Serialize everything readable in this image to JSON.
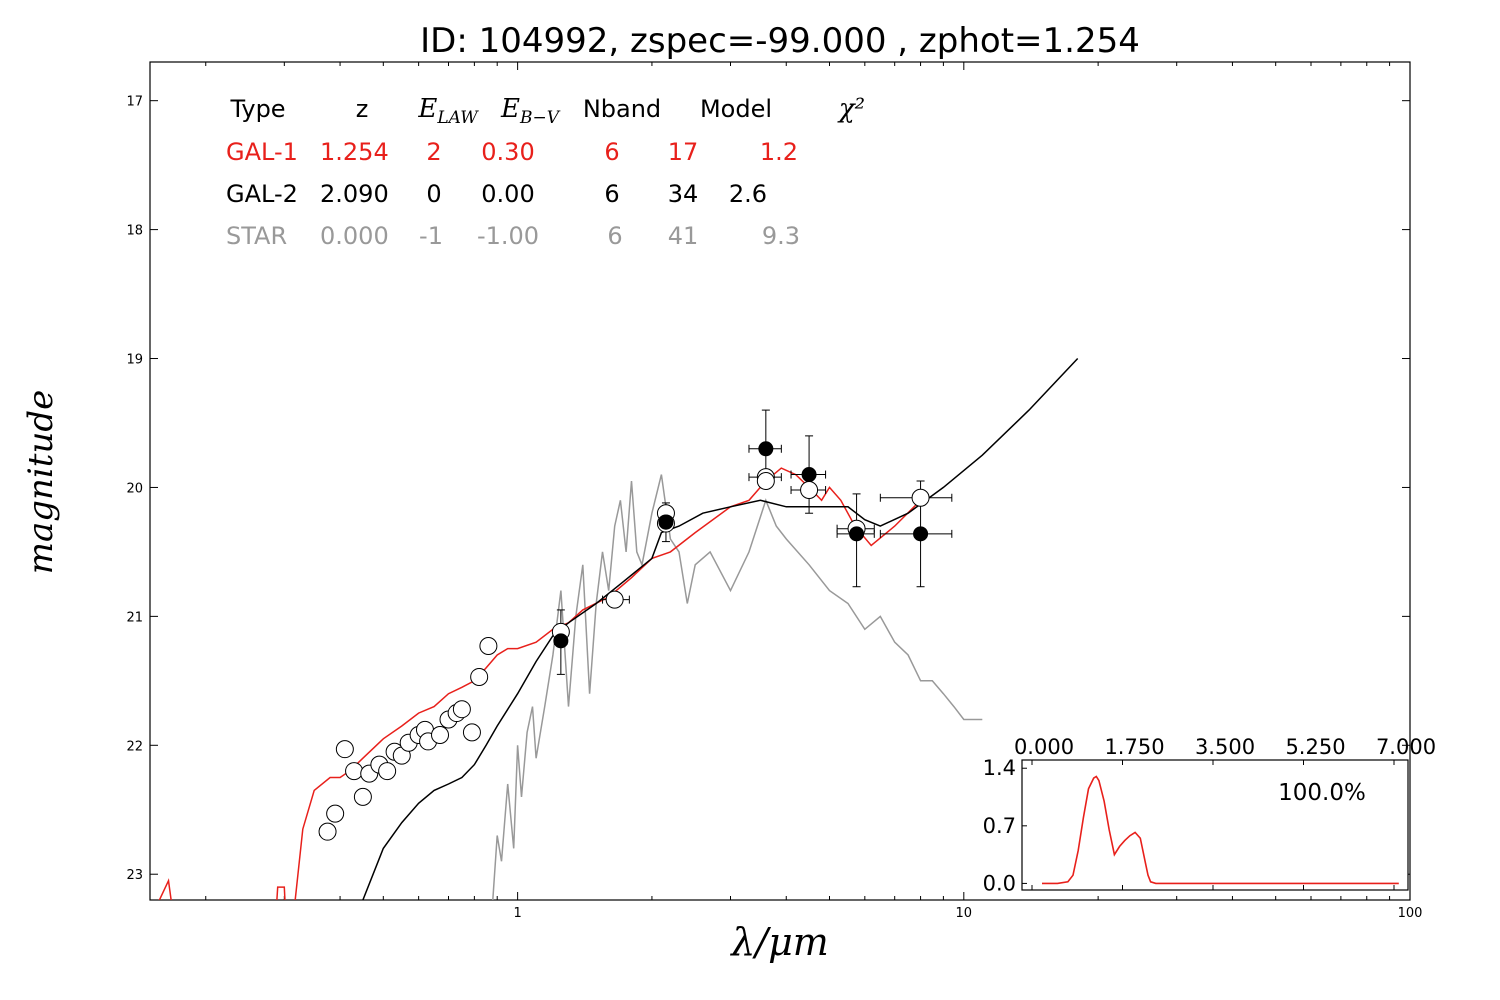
{
  "chart_data": [
    {
      "type": "scatter",
      "title": "ID:  104992, zspec=-99.000 , zphot=1.254",
      "xlabel": "λ/μm",
      "ylabel": "magnitude",
      "xscale": "log",
      "xlim": [
        0.15,
        100
      ],
      "ylim": [
        23.2,
        16.7
      ],
      "yinverted": true,
      "xticks": [
        {
          "v": 1,
          "label": "1"
        },
        {
          "v": 10,
          "label": "10"
        },
        {
          "v": 100,
          "label": "100"
        }
      ],
      "yticks": [
        {
          "v": 17,
          "label": "17"
        },
        {
          "v": 18,
          "label": "18"
        },
        {
          "v": 19,
          "label": "19"
        },
        {
          "v": 20,
          "label": "20"
        },
        {
          "v": 21,
          "label": "21"
        },
        {
          "v": 22,
          "label": "22"
        },
        {
          "v": 23,
          "label": "23"
        }
      ],
      "table": {
        "headers": [
          "Type",
          "z",
          "E_LAW",
          "E_B−V",
          "Nband",
          "Model",
          "χ²"
        ],
        "rows": [
          {
            "color": "#e8201b",
            "cells": [
              "GAL-1",
              "1.254",
              "2",
              "0.30",
              "6",
              "17",
              "1.2"
            ]
          },
          {
            "color": "#000000",
            "cells": [
              "GAL-2",
              "2.090",
              "0",
              "0.00",
              "6",
              "34",
              "2.6"
            ]
          },
          {
            "color": "#999999",
            "cells": [
              "STAR",
              "0.000",
              "-1",
              "-1.00",
              "6",
              "41",
              "9.3"
            ]
          }
        ]
      },
      "series": [
        {
          "color": "#e8201b",
          "kind": "line",
          "x": [
            0.155,
            0.165,
            0.168,
            0.175,
            0.18,
            0.2,
            0.22,
            0.25,
            0.285,
            0.29,
            0.3,
            0.305,
            0.31,
            0.315,
            0.33,
            0.35,
            0.38,
            0.4,
            0.42,
            0.45,
            0.5,
            0.55,
            0.6,
            0.65,
            0.7,
            0.75,
            0.8,
            0.85,
            0.9,
            0.95,
            1.0,
            1.1,
            1.2,
            1.3,
            1.4,
            1.6,
            1.8,
            2.0,
            2.2,
            2.5,
            3.0,
            3.3,
            3.6,
            3.9,
            4.2,
            4.5,
            4.8,
            5.0,
            5.3,
            5.7,
            6.2,
            7.0,
            8.0
          ],
          "y": [
            23.25,
            23.05,
            23.25,
            23.6,
            23.6,
            23.6,
            23.6,
            23.6,
            23.5,
            23.1,
            23.1,
            23.6,
            23.6,
            23.3,
            22.65,
            22.35,
            22.25,
            22.25,
            22.2,
            22.1,
            21.95,
            21.85,
            21.75,
            21.7,
            21.6,
            21.55,
            21.5,
            21.4,
            21.3,
            21.25,
            21.25,
            21.2,
            21.1,
            21.05,
            20.95,
            20.85,
            20.7,
            20.55,
            20.5,
            20.35,
            20.15,
            20.1,
            19.95,
            19.85,
            19.9,
            20.0,
            20.1,
            20.0,
            20.1,
            20.3,
            20.45,
            20.3,
            20.1
          ]
        },
        {
          "color": "#000000",
          "kind": "line",
          "x": [
            0.45,
            0.5,
            0.55,
            0.6,
            0.65,
            0.7,
            0.75,
            0.8,
            0.85,
            0.9,
            1.0,
            1.1,
            1.2,
            1.3,
            1.5,
            1.7,
            2.0,
            2.1,
            2.3,
            2.6,
            3.0,
            3.5,
            4.0,
            4.5,
            5.0,
            5.5,
            6.0,
            6.5,
            7.5,
            9.0,
            11.0,
            14.0,
            18.0
          ],
          "y": [
            23.2,
            22.8,
            22.6,
            22.45,
            22.35,
            22.3,
            22.25,
            22.15,
            22.0,
            21.85,
            21.6,
            21.35,
            21.15,
            21.05,
            20.9,
            20.75,
            20.55,
            20.35,
            20.3,
            20.2,
            20.15,
            20.1,
            20.15,
            20.15,
            20.15,
            20.15,
            20.25,
            20.3,
            20.2,
            20.0,
            19.75,
            19.4,
            19.0
          ]
        },
        {
          "color": "#999999",
          "kind": "line",
          "x": [
            0.88,
            0.9,
            0.92,
            0.95,
            0.98,
            1.0,
            1.02,
            1.05,
            1.08,
            1.1,
            1.15,
            1.2,
            1.25,
            1.3,
            1.35,
            1.4,
            1.45,
            1.5,
            1.55,
            1.6,
            1.65,
            1.7,
            1.75,
            1.8,
            1.85,
            1.9,
            2.0,
            2.1,
            2.2,
            2.3,
            2.4,
            2.5,
            2.7,
            3.0,
            3.3,
            3.6,
            3.8,
            4.0,
            4.5,
            5.0,
            5.5,
            6.0,
            6.5,
            7.0,
            7.5,
            8.0,
            8.5,
            9.0,
            9.5,
            10.0,
            11.0
          ],
          "y": [
            23.2,
            22.7,
            22.9,
            22.3,
            22.8,
            22.0,
            22.4,
            21.9,
            21.7,
            22.1,
            21.7,
            21.3,
            20.8,
            21.7,
            21.0,
            20.6,
            21.6,
            20.9,
            20.5,
            20.8,
            20.3,
            20.1,
            20.5,
            19.95,
            20.5,
            20.6,
            20.2,
            19.9,
            20.4,
            20.5,
            20.9,
            20.6,
            20.5,
            20.8,
            20.5,
            20.1,
            20.3,
            20.4,
            20.6,
            20.8,
            20.9,
            21.1,
            21.0,
            21.2,
            21.3,
            21.5,
            21.5,
            21.6,
            21.7,
            21.8,
            21.8
          ]
        }
      ],
      "open_points": [
        {
          "x": 0.375,
          "y": 22.67,
          "xerr": [
            0.36,
            0.39
          ]
        },
        {
          "x": 0.39,
          "y": 22.53
        },
        {
          "x": 0.41,
          "y": 22.03
        },
        {
          "x": 0.43,
          "y": 22.2
        },
        {
          "x": 0.45,
          "y": 22.4
        },
        {
          "x": 0.465,
          "y": 22.22
        },
        {
          "x": 0.49,
          "y": 22.15
        },
        {
          "x": 0.51,
          "y": 22.2
        },
        {
          "x": 0.53,
          "y": 22.05
        },
        {
          "x": 0.55,
          "y": 22.08
        },
        {
          "x": 0.57,
          "y": 21.98
        },
        {
          "x": 0.6,
          "y": 21.92
        },
        {
          "x": 0.62,
          "y": 21.88
        },
        {
          "x": 0.63,
          "y": 21.97
        },
        {
          "x": 0.67,
          "y": 21.92
        },
        {
          "x": 0.7,
          "y": 21.8
        },
        {
          "x": 0.73,
          "y": 21.75
        },
        {
          "x": 0.75,
          "y": 21.72
        },
        {
          "x": 0.79,
          "y": 21.9
        },
        {
          "x": 0.82,
          "y": 21.47
        },
        {
          "x": 0.86,
          "y": 21.23
        },
        {
          "x": 1.25,
          "y": 21.12,
          "xerr": [
            1.21,
            1.29
          ]
        },
        {
          "x": 1.65,
          "y": 20.87,
          "xerr": [
            1.55,
            1.78
          ]
        },
        {
          "x": 2.15,
          "y": 20.2,
          "xerr": [
            2.08,
            2.23
          ]
        },
        {
          "x": 2.15,
          "y": 20.28
        },
        {
          "x": 3.6,
          "y": 19.92,
          "xerr": [
            3.3,
            3.9
          ]
        },
        {
          "x": 3.6,
          "y": 19.95
        },
        {
          "x": 4.5,
          "y": 20.02,
          "xerr": [
            4.1,
            4.9
          ]
        },
        {
          "x": 5.75,
          "y": 20.32,
          "xerr": [
            5.2,
            6.3
          ]
        },
        {
          "x": 8.0,
          "y": 20.08,
          "xerr": [
            6.5,
            9.4
          ]
        }
      ],
      "filled_points": [
        {
          "x": 1.25,
          "y": 21.19,
          "xerr": [
            1.21,
            1.29
          ],
          "yerr": [
            20.95,
            21.45
          ]
        },
        {
          "x": 2.15,
          "y": 20.27,
          "xerr": [
            2.08,
            2.23
          ],
          "yerr": [
            20.12,
            20.42
          ]
        },
        {
          "x": 3.6,
          "y": 19.7,
          "xerr": [
            3.3,
            3.9
          ],
          "yerr": [
            19.4,
            20.0
          ]
        },
        {
          "x": 4.5,
          "y": 19.9,
          "xerr": [
            4.1,
            4.9
          ],
          "yerr": [
            19.6,
            20.2
          ]
        },
        {
          "x": 5.75,
          "y": 20.36,
          "xerr": [
            5.2,
            6.3
          ],
          "yerr": [
            20.05,
            20.77
          ]
        },
        {
          "x": 8.0,
          "y": 20.36,
          "xerr": [
            6.5,
            9.4
          ],
          "yerr": [
            19.95,
            20.77
          ]
        }
      ]
    },
    {
      "type": "line",
      "title": "",
      "label": "100.0%",
      "xlim": [
        0.0,
        7.0
      ],
      "ylim": [
        -0.08,
        1.5
      ],
      "xticks": [
        {
          "v": 0.0,
          "label": "0.000"
        },
        {
          "v": 1.75,
          "label": "1.750"
        },
        {
          "v": 3.5,
          "label": "3.500"
        },
        {
          "v": 5.25,
          "label": "5.250"
        },
        {
          "v": 7.0,
          "label": "7.000"
        }
      ],
      "yticks": [
        {
          "v": 1.4,
          "label": "1.4"
        },
        {
          "v": 0.7,
          "label": "0.7"
        },
        {
          "v": 0.0,
          "label": "0.0"
        }
      ],
      "series": [
        {
          "color": "#e8201b",
          "x": [
            0.0,
            0.3,
            0.5,
            0.6,
            0.7,
            0.8,
            0.9,
            1.0,
            1.05,
            1.1,
            1.2,
            1.3,
            1.4,
            1.5,
            1.6,
            1.7,
            1.8,
            1.9,
            2.0,
            2.05,
            2.1,
            2.2,
            6.9
          ],
          "y": [
            0.0,
            0.0,
            0.02,
            0.1,
            0.4,
            0.8,
            1.15,
            1.28,
            1.3,
            1.25,
            1.0,
            0.65,
            0.35,
            0.45,
            0.52,
            0.58,
            0.62,
            0.55,
            0.25,
            0.1,
            0.02,
            0.0,
            0.0
          ]
        }
      ]
    }
  ]
}
